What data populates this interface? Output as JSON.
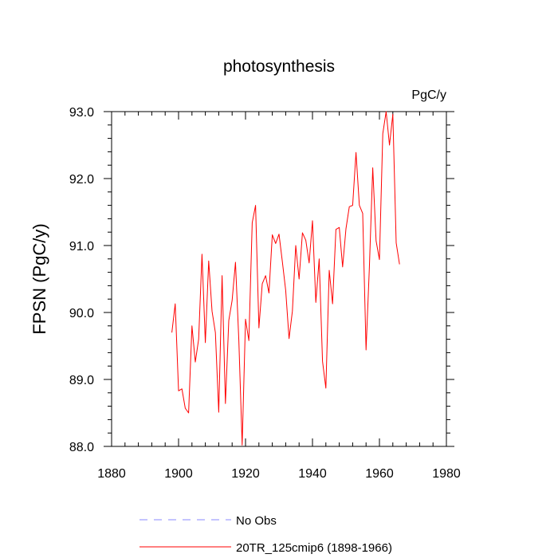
{
  "chart_data": {
    "type": "line",
    "title": "photosynthesis",
    "units": "PgC/y",
    "xlabel": "",
    "ylabel": "FPSN  (PgC/y)",
    "xlim": [
      1880,
      1980
    ],
    "ylim": [
      88.0,
      93.0
    ],
    "x_ticks": [
      1880,
      1900,
      1920,
      1940,
      1960,
      1980
    ],
    "x_tick_labels": [
      "1880",
      "1900",
      "1920",
      "1940",
      "1960",
      "1980"
    ],
    "y_ticks": [
      88.0,
      89.0,
      90.0,
      91.0,
      92.0,
      93.0
    ],
    "y_tick_labels": [
      "88.0",
      "89.0",
      "90.0",
      "91.0",
      "92.0",
      "93.0"
    ],
    "series": [
      {
        "name": "20TR_125cmip6 (1898-1966)",
        "color": "#ff0000",
        "style": "solid",
        "x": [
          1898,
          1899,
          1900,
          1901,
          1902,
          1903,
          1904,
          1905,
          1906,
          1907,
          1908,
          1909,
          1910,
          1911,
          1912,
          1913,
          1914,
          1915,
          1916,
          1917,
          1918,
          1919,
          1920,
          1921,
          1922,
          1923,
          1924,
          1925,
          1926,
          1927,
          1928,
          1929,
          1930,
          1931,
          1932,
          1933,
          1934,
          1935,
          1936,
          1937,
          1938,
          1939,
          1940,
          1941,
          1942,
          1943,
          1944,
          1945,
          1946,
          1947,
          1948,
          1949,
          1950,
          1951,
          1952,
          1953,
          1954,
          1955,
          1956,
          1957,
          1958,
          1959,
          1960,
          1961,
          1962,
          1963,
          1964,
          1965,
          1966
        ],
        "values": [
          89.7,
          90.13,
          88.83,
          88.86,
          88.57,
          88.5,
          89.8,
          89.26,
          89.6,
          90.87,
          89.55,
          90.77,
          90.02,
          89.7,
          88.51,
          90.55,
          88.64,
          89.88,
          90.18,
          90.75,
          89.59,
          88.02,
          89.9,
          89.58,
          91.34,
          91.6,
          89.77,
          90.43,
          90.55,
          90.29,
          91.16,
          91.03,
          91.17,
          90.76,
          90.33,
          89.61,
          90.02,
          91.0,
          90.5,
          91.19,
          91.08,
          90.74,
          91.37,
          90.15,
          90.8,
          89.27,
          88.87,
          90.63,
          90.13,
          91.24,
          91.27,
          90.68,
          91.25,
          91.58,
          91.6,
          92.39,
          91.6,
          91.48,
          89.44,
          90.68,
          92.16,
          91.07,
          90.79,
          92.67,
          93.0,
          92.5,
          92.96,
          91.04,
          90.72
        ]
      }
    ],
    "legend": [
      {
        "label": "No Obs",
        "color": "#8a8aff",
        "style": "dashed"
      },
      {
        "label": "20TR_125cmip6 (1898-1966)",
        "color": "#ff0000",
        "style": "solid"
      }
    ],
    "legend_position": "bottom"
  }
}
